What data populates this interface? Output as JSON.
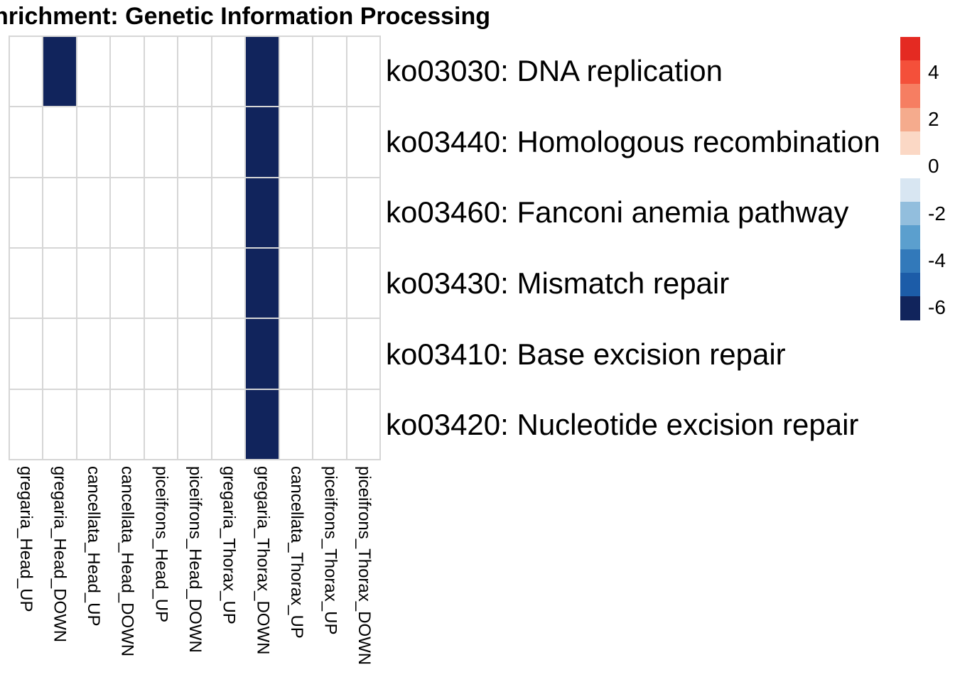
{
  "title": "nrichment: Genetic Information Processing",
  "chart_data": {
    "type": "heatmap",
    "title": "nrichment: Genetic Information Processing",
    "columns": [
      "gregaria_Head_UP",
      "gregaria_Head_DOWN",
      "cancellata_Head_UP",
      "cancellata_Head_DOWN",
      "piceifrons_Head_UP",
      "piceifrons_Head_DOWN",
      "gregaria_Thorax_UP",
      "gregaria_Thorax_DOWN",
      "cancellata_Thorax_UP",
      "piceifrons_Thorax_UP",
      "piceifrons_Thorax_DOWN"
    ],
    "rows": [
      "ko03030: DNA replication",
      "ko03440: Homologous recombination",
      "ko03460: Fanconi anemia pathway",
      "ko03430: Mismatch repair",
      "ko03410: Base excision repair",
      "ko03420: Nucleotide excision repair"
    ],
    "values": [
      [
        null,
        -6,
        null,
        null,
        null,
        null,
        null,
        -6,
        null,
        null,
        null
      ],
      [
        null,
        null,
        null,
        null,
        null,
        null,
        null,
        -6,
        null,
        null,
        null
      ],
      [
        null,
        null,
        null,
        null,
        null,
        null,
        null,
        -6,
        null,
        null,
        null
      ],
      [
        null,
        null,
        null,
        null,
        null,
        null,
        null,
        -6,
        null,
        null,
        null
      ],
      [
        null,
        null,
        null,
        null,
        null,
        null,
        null,
        -6,
        null,
        null,
        null
      ],
      [
        null,
        null,
        null,
        null,
        null,
        null,
        null,
        -6,
        null,
        null,
        null
      ]
    ],
    "cell_colors": {
      "filled": "#11245c",
      "empty": "#ffffff"
    },
    "gridline_color": "#d6d6d6",
    "legend_position": "right",
    "colorbar": {
      "bins": [
        {
          "value": 5,
          "color": "#e42a22"
        },
        {
          "value": 4,
          "color": "#f4503a"
        },
        {
          "value": 3,
          "color": "#f67e62"
        },
        {
          "value": 2,
          "color": "#f5ab8d"
        },
        {
          "value": 1,
          "color": "#fbd8c5"
        },
        {
          "value": 0,
          "color": "#ffffff"
        },
        {
          "value": -1,
          "color": "#d8e6f2"
        },
        {
          "value": -2,
          "color": "#92bedd"
        },
        {
          "value": -3,
          "color": "#5b9fce"
        },
        {
          "value": -4,
          "color": "#3279ba"
        },
        {
          "value": -5,
          "color": "#1c5ca8"
        },
        {
          "value": -6,
          "color": "#11245c"
        }
      ],
      "tick_labels": [
        "4",
        "2",
        "0",
        "-2",
        "-4",
        "-6"
      ],
      "tick_bin_indices": [
        1,
        3,
        5,
        7,
        9,
        11
      ]
    }
  }
}
